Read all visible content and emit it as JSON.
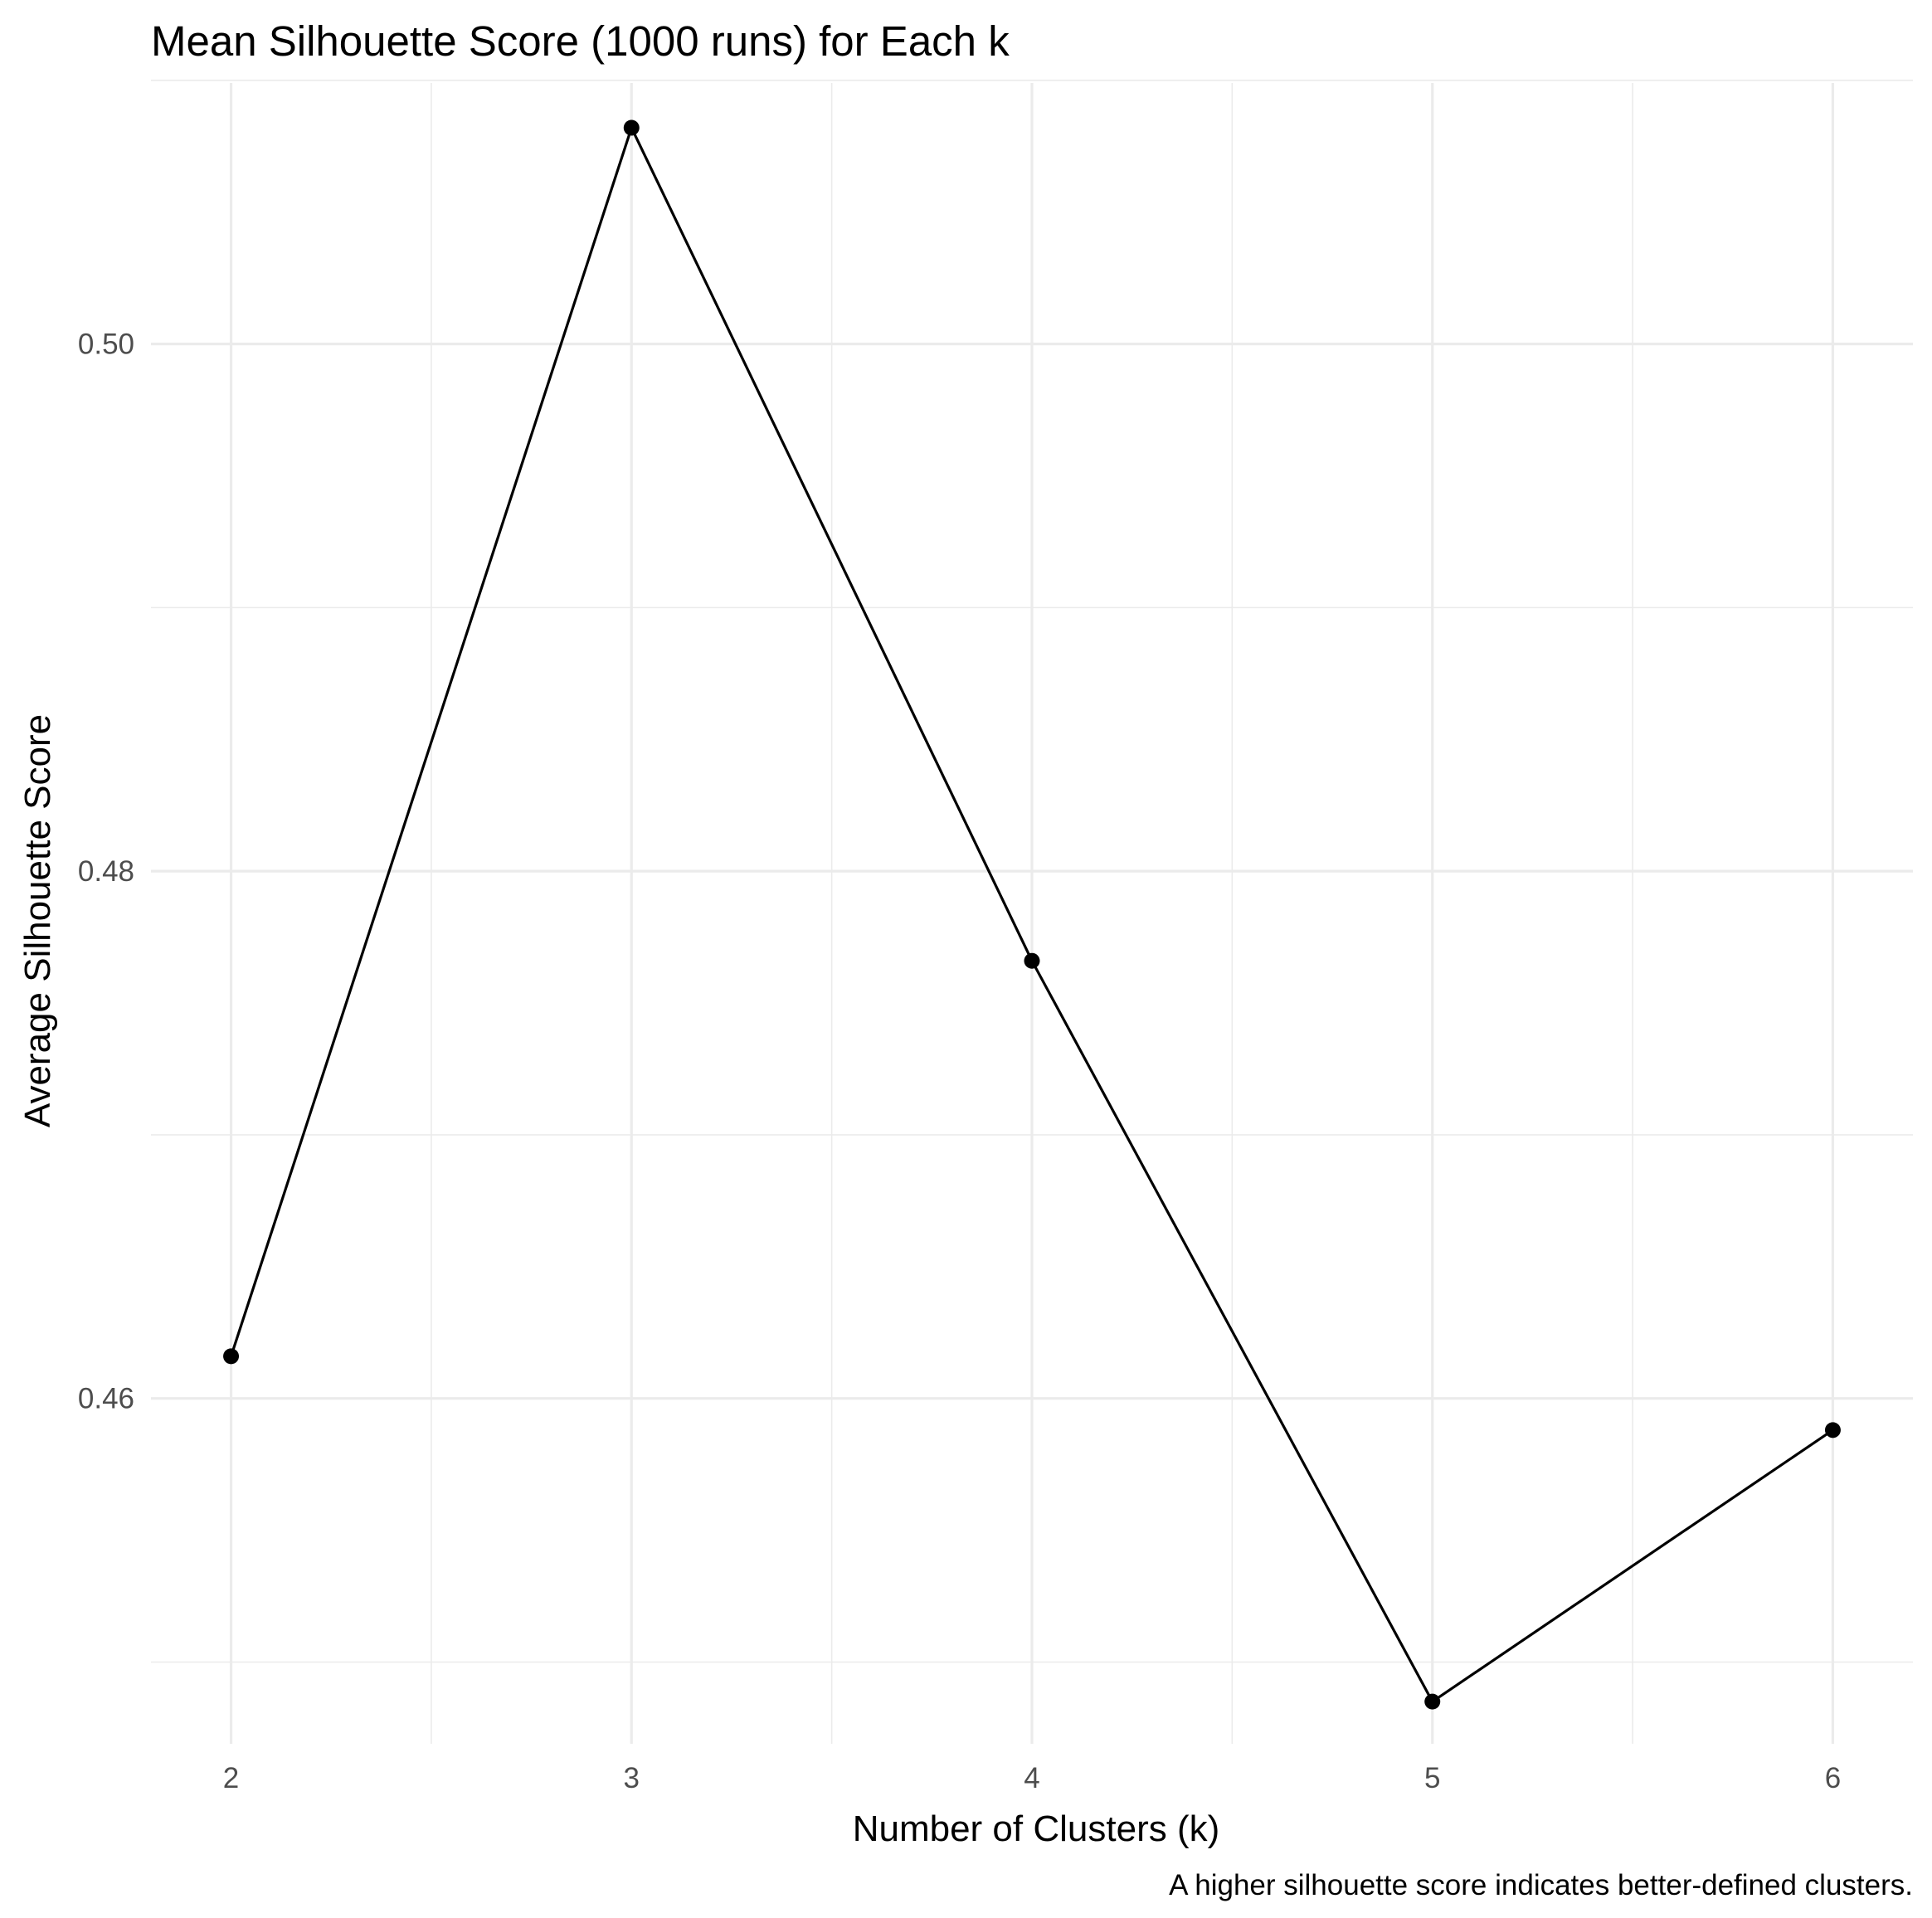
{
  "chart_data": {
    "type": "line",
    "title": "Mean Silhouette Score (1000 runs) for Each k",
    "xlabel": "Number of Clusters (k)",
    "ylabel": "Average Silhouette Score",
    "caption": "A higher silhouette score indicates better-defined clusters.",
    "x": [
      2,
      3,
      4,
      5,
      6
    ],
    "series": [
      {
        "values": [
          0.4616,
          0.5082,
          0.4766,
          0.4485,
          0.4588
        ]
      }
    ],
    "xlim": [
      1.8,
      6.2
    ],
    "ylim": [
      0.4469,
      0.5099
    ],
    "x_ticks": [
      {
        "value": 2,
        "label": "2"
      },
      {
        "value": 3,
        "label": "3"
      },
      {
        "value": 4,
        "label": "4"
      },
      {
        "value": 5,
        "label": "5"
      },
      {
        "value": 6,
        "label": "6"
      }
    ],
    "y_ticks": [
      {
        "value": 0.46,
        "label": "0.46"
      },
      {
        "value": 0.48,
        "label": "0.48"
      },
      {
        "value": 0.5,
        "label": "0.50"
      }
    ],
    "x_minor": [
      2.5,
      3.5,
      4.5,
      5.5
    ],
    "y_minor": [
      0.45,
      0.47,
      0.49,
      0.51
    ],
    "grid": true,
    "legend": "none",
    "line_color": "#000000",
    "grid_color": "#ebebeb",
    "background": "#ffffff"
  }
}
